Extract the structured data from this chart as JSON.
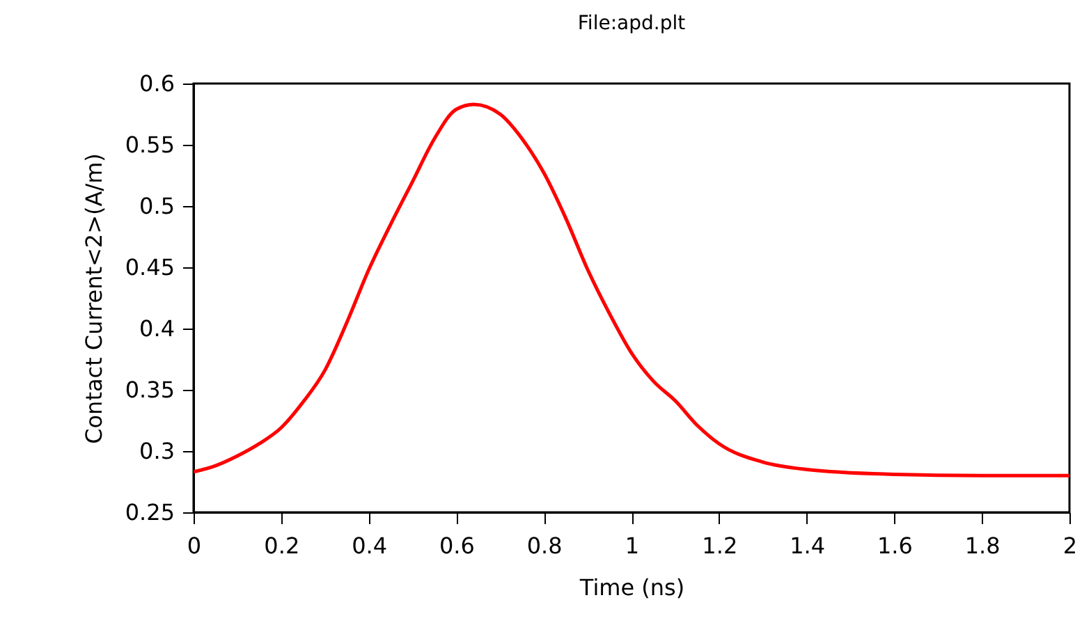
{
  "chart_data": {
    "type": "line",
    "title": "File:apd.plt",
    "xlabel": "Time (ns)",
    "ylabel": "Contact Current<2>(A/m)",
    "x": [
      0,
      0.05,
      0.1,
      0.15,
      0.2,
      0.25,
      0.3,
      0.35,
      0.4,
      0.45,
      0.5,
      0.55,
      0.6,
      0.64,
      0.7,
      0.75,
      0.8,
      0.85,
      0.9,
      0.95,
      1.0,
      1.05,
      1.1,
      1.15,
      1.2,
      1.3,
      1.4,
      1.6,
      1.8,
      2.0
    ],
    "series": [
      {
        "color": "#ff0000",
        "values": [
          0.283,
          0.288,
          0.296,
          0.306,
          0.319,
          0.34,
          0.366,
          0.405,
          0.448,
          0.485,
          0.52,
          0.555,
          0.579,
          0.583,
          0.575,
          0.555,
          0.527,
          0.49,
          0.448,
          0.412,
          0.38,
          0.357,
          0.341,
          0.321,
          0.306,
          0.291,
          0.285,
          0.281,
          0.28,
          0.28
        ]
      }
    ],
    "xlim": [
      0,
      2
    ],
    "xticks": [
      0,
      0.2,
      0.4,
      0.6,
      0.8,
      1,
      1.2,
      1.4,
      1.6,
      1.8,
      2
    ],
    "ylim": [
      0.25,
      0.6
    ],
    "yticks": [
      0.25,
      0.3,
      0.35,
      0.4,
      0.45,
      0.5,
      0.55,
      0.6
    ],
    "grid": false,
    "marker": "none",
    "line_style": "solid"
  }
}
